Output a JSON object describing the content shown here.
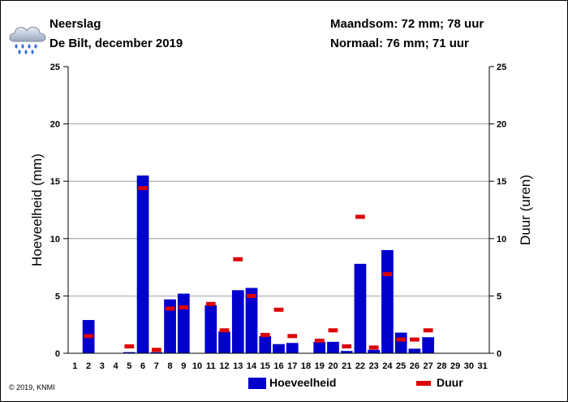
{
  "header": {
    "title": "Neerslag",
    "subtitle": "De Bilt, december 2019",
    "month_sum": "Maandsom: 72 mm; 78 uur",
    "normal": "Normaal: 76 mm; 71 uur"
  },
  "icon": "rain-cloud-icon",
  "copyright": "© 2019, KNMI",
  "colors": {
    "bar": "#0000cc",
    "duration": "#dd0000",
    "grid": "#888888"
  },
  "legend": {
    "amount_label": "Hoeveelheid",
    "duration_label": "Duur"
  },
  "chart_data": {
    "type": "bar",
    "categories": [
      "1",
      "2",
      "3",
      "4",
      "5",
      "6",
      "7",
      "8",
      "9",
      "10",
      "11",
      "12",
      "13",
      "14",
      "15",
      "16",
      "17",
      "18",
      "19",
      "20",
      "21",
      "22",
      "23",
      "24",
      "25",
      "26",
      "27",
      "28",
      "29",
      "30",
      "31"
    ],
    "ylabel": "Hoeveelheid (mm)",
    "y2label": "Duur (uren)",
    "ylim": [
      0,
      25
    ],
    "yticks": [
      "0",
      "5",
      "10",
      "15",
      "20",
      "25"
    ],
    "grid": true,
    "series": [
      {
        "name": "Hoeveelheid",
        "kind": "bar",
        "values": [
          0,
          2.9,
          0,
          0,
          0.1,
          15.5,
          0.1,
          4.7,
          5.2,
          0,
          4.2,
          1.9,
          5.5,
          5.7,
          1.5,
          0.8,
          0.9,
          0,
          1.0,
          1.0,
          0.2,
          7.8,
          0.3,
          9.0,
          1.8,
          0.4,
          1.4,
          0,
          0,
          0,
          0
        ]
      },
      {
        "name": "Duur",
        "kind": "marker",
        "values": [
          0,
          1.5,
          0,
          0,
          0.6,
          14.4,
          0.3,
          3.9,
          4.0,
          0,
          4.3,
          2.0,
          8.2,
          5.0,
          1.6,
          3.8,
          1.5,
          0,
          1.1,
          2.0,
          0.6,
          11.9,
          0.5,
          6.9,
          1.2,
          1.2,
          2.0,
          0,
          0,
          0,
          0
        ]
      }
    ]
  }
}
